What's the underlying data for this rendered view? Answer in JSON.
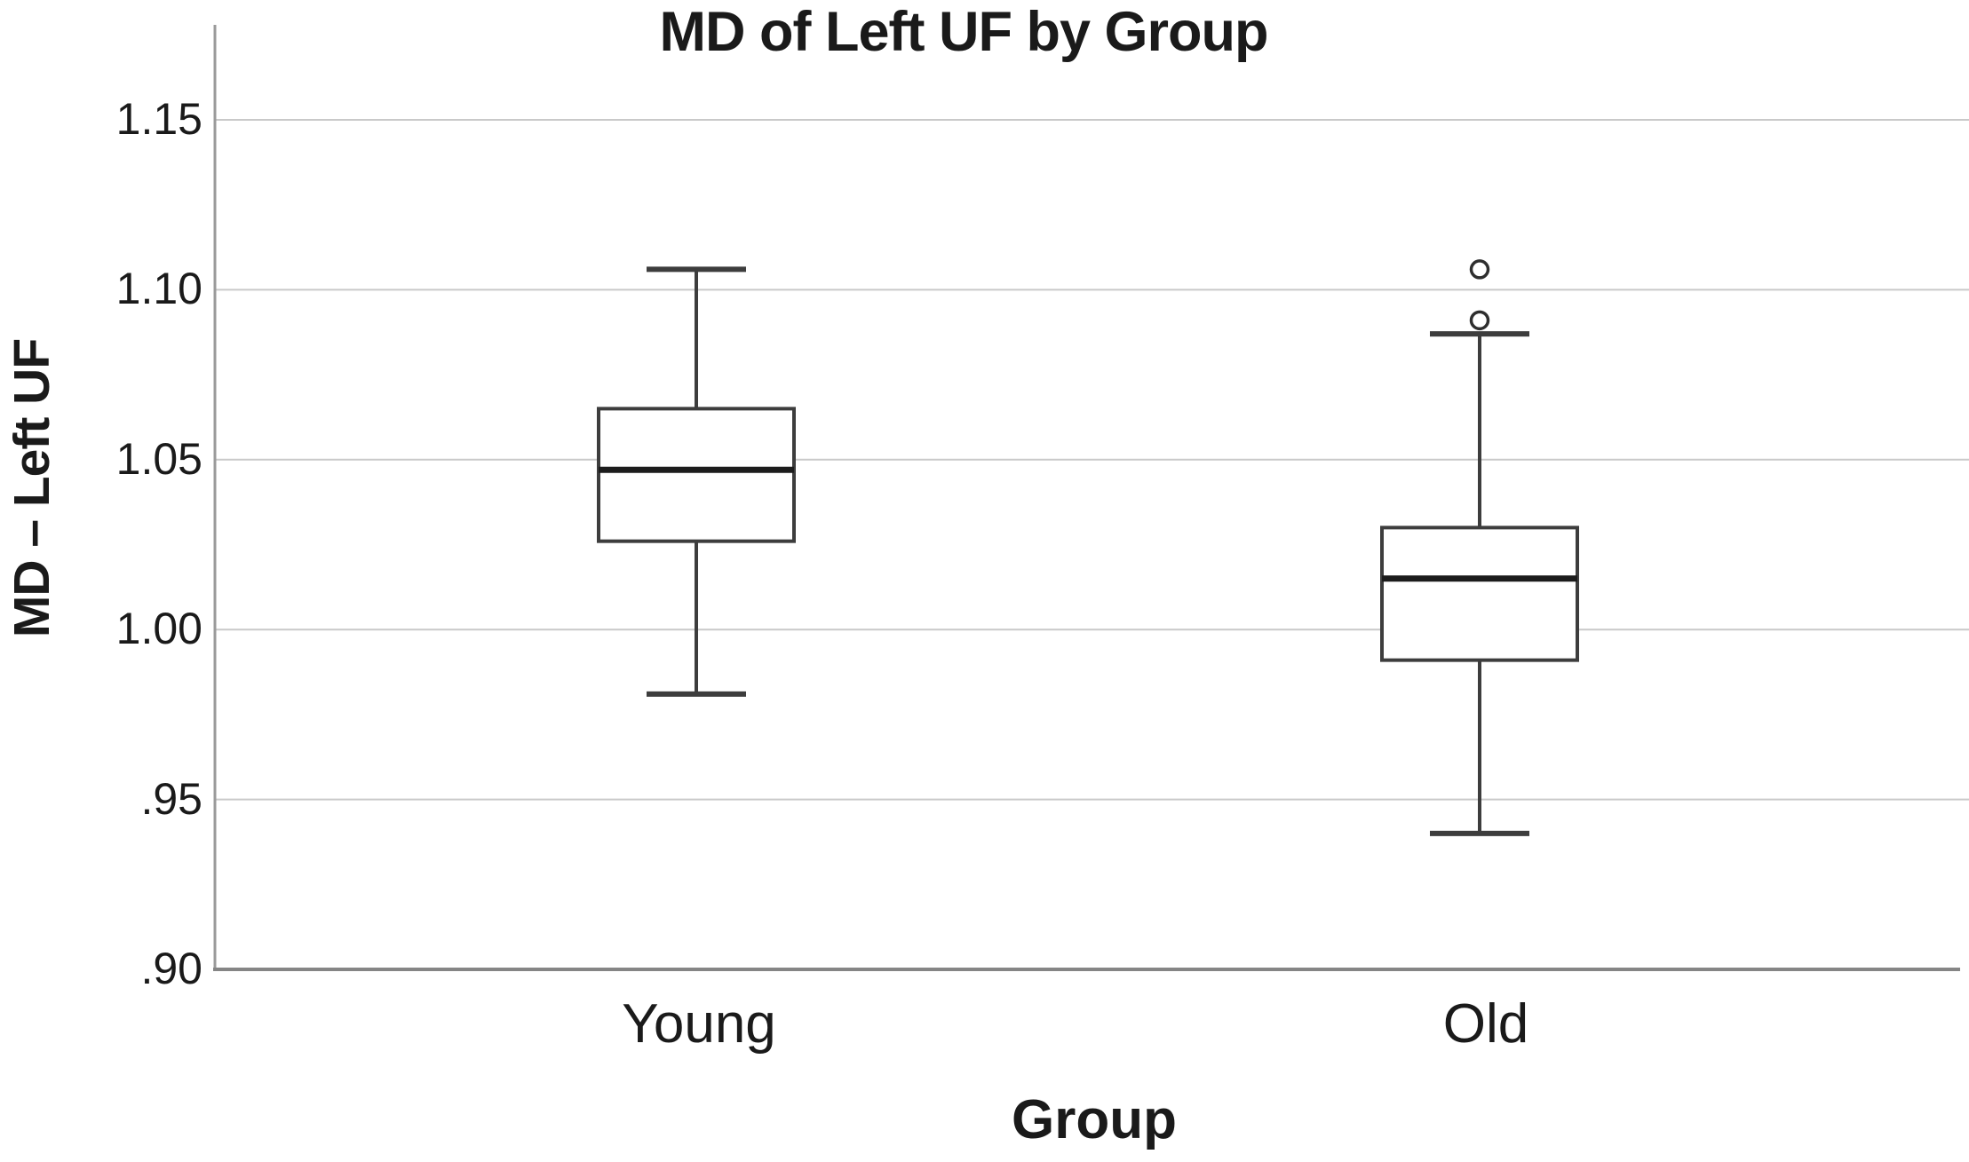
{
  "chart_data": {
    "type": "box",
    "title": "MD of Left UF by Group",
    "xlabel": "Group",
    "ylabel": "MD – Left UF",
    "ylim": [
      0.9,
      1.15
    ],
    "grid": "horizontal",
    "legend": "none",
    "yticks": [
      {
        "label": "1.15",
        "value": 1.15
      },
      {
        "label": "1.10",
        "value": 1.1
      },
      {
        "label": "1.05",
        "value": 1.05
      },
      {
        "label": "1.00",
        "value": 1.0
      },
      {
        "label": ".95",
        "value": 0.95
      },
      {
        "label": ".90",
        "value": 0.9
      }
    ],
    "groups": [
      {
        "label": "Young",
        "whisker_low": 0.981,
        "q1": 1.026,
        "median": 1.047,
        "q3": 1.065,
        "whisker_high": 1.106,
        "outliers": []
      },
      {
        "label": "Old",
        "whisker_low": 0.94,
        "q1": 0.991,
        "median": 1.015,
        "q3": 1.03,
        "whisker_high": 1.087,
        "outliers": [
          1.091,
          1.106
        ]
      }
    ],
    "colors": {
      "background": "#ffffff",
      "text": "#1a1a1a",
      "gridline": "#c9c9c9",
      "axis": "#9a9a9a",
      "axis_bottom": "#858585",
      "box_stroke": "#3d3d3d",
      "box_fill": "#ffffff",
      "median": "#1c1c1c",
      "outlier_stroke": "#2e2e2e"
    }
  }
}
